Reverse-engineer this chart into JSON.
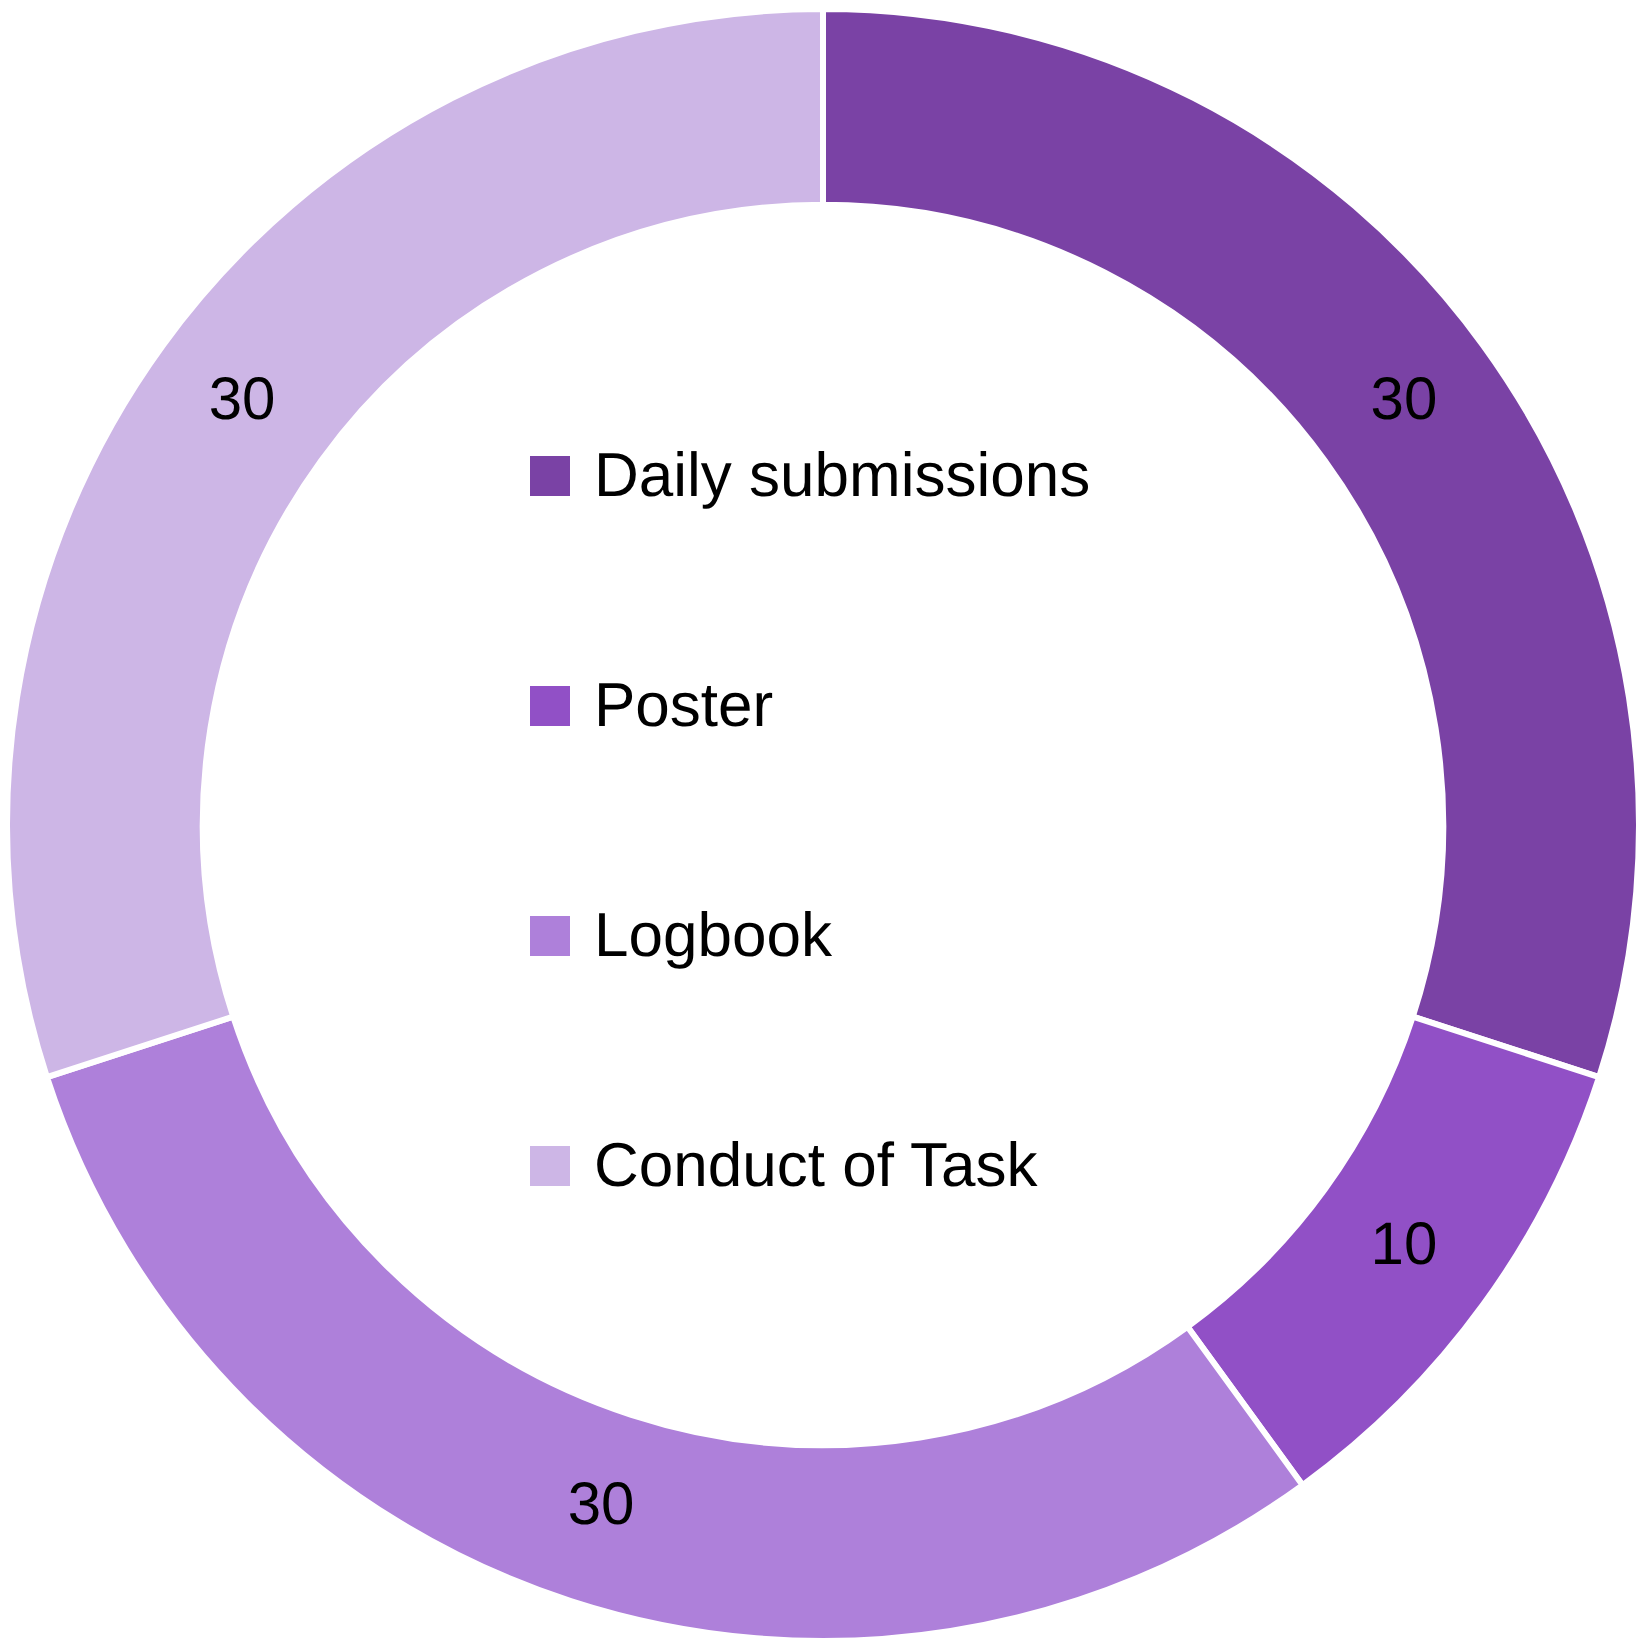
{
  "chart_data": {
    "type": "donut",
    "categories": [
      "Daily submissions",
      "Poster",
      "Logbook",
      "Conduct of Task"
    ],
    "values": [
      30,
      10,
      30,
      30
    ],
    "colors": [
      "#7a42a5",
      "#9150c6",
      "#ae80da",
      "#cdb6e6"
    ],
    "data_labels": true,
    "legend": "center"
  }
}
